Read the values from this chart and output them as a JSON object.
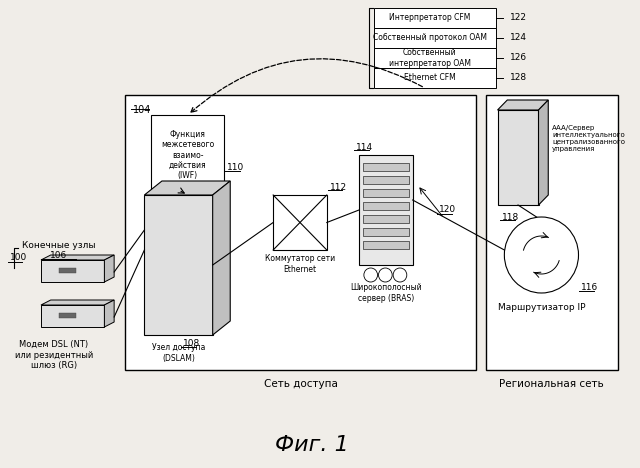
{
  "title": "Фиг. 1",
  "bg": "#f0ede8",
  "labels": {
    "cfm_interpreter": "Интерпретатор CFM",
    "own_oam_protocol": "Собственный протокол OAM",
    "own_oam_interpreter": "Собственный\nинтерпретатор OAM",
    "ethernet_cfm": "Ethernet CFM",
    "iwf_label": "Функция\nмежсетевого\nвзаимо-\nдействия\n(IWF)",
    "dslam_label": "Узел доступа\n(DSLAM)",
    "ethernet_switch": "Коммутатор сети\nEthernet",
    "bras_label": "Широкополосный\nсервер (BRAS)",
    "ip_router": "Маршрутизатор IP",
    "aaa_server": "AAA/Сервер\nинтеллектуального\nцентрализованного\nуправления",
    "end_nodes": "Конечные узлы",
    "dsl_modem": "Модем DSL (NT)\nили резидентный\nшлюз (RG)",
    "access_network": "Сеть доступа",
    "regional_network": "Региональная сеть"
  }
}
